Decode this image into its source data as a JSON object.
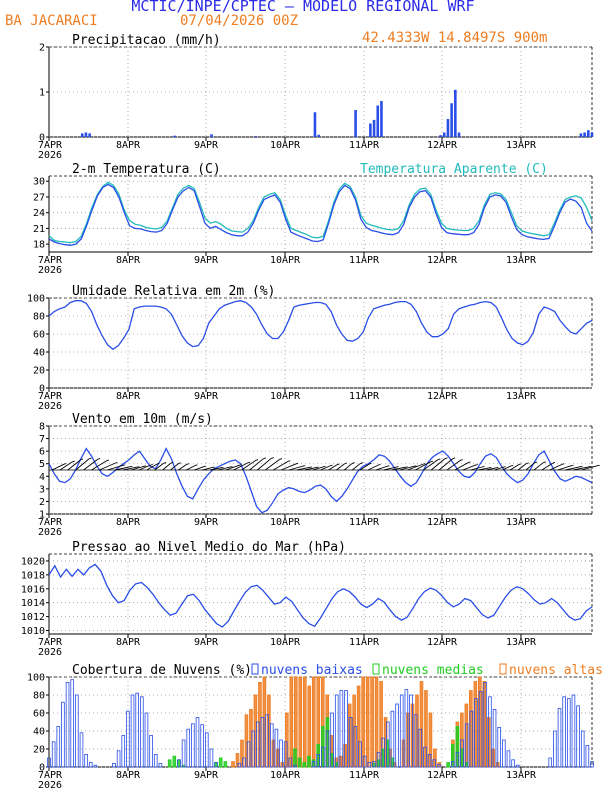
{
  "header": {
    "title": "MCTIC/INPE/CPTEC – MODELO REGIONAL WRF",
    "location": "BA JACARACI",
    "run": "07/04/2026 00Z",
    "coords": "42.4333W 14.8497S 900m"
  },
  "colors": {
    "title": "#2a2ae8",
    "orange": "#ee7d22",
    "blue": "#2a4ee8",
    "cyan": "#22bbbb",
    "green": "#22cc22"
  },
  "time_axis": {
    "labels": [
      "7APR",
      "8APR",
      "9APR",
      "10APR",
      "11APR",
      "12APR",
      "13APR"
    ],
    "year": "2026"
  },
  "chart_data": [
    {
      "type": "bar",
      "title": "Precipitacao (mm/h)",
      "ylim": [
        0,
        2
      ],
      "yticks": [
        "0",
        "1",
        "2"
      ],
      "series": [
        {
          "values": [
            0,
            0,
            0,
            0,
            0,
            0,
            0,
            0,
            0,
            0.08,
            0.1,
            0.08,
            0,
            0,
            0,
            0,
            0,
            0,
            0,
            0,
            0,
            0,
            0,
            0,
            0,
            0,
            0,
            0,
            0,
            0,
            0,
            0,
            0,
            0,
            0.03,
            0,
            0,
            0,
            0,
            0,
            0,
            0,
            0,
            0,
            0.06,
            0,
            0,
            0,
            0,
            0,
            0,
            0,
            0,
            0,
            0,
            0,
            0.02,
            0,
            0,
            0,
            0,
            0,
            0,
            0,
            0,
            0,
            0,
            0,
            0,
            0,
            0,
            0,
            0.55,
            0.05,
            0,
            0,
            0,
            0,
            0,
            0,
            0,
            0,
            0,
            0.6,
            0,
            0,
            0,
            0.3,
            0.38,
            0.7,
            0.8,
            0,
            0,
            0,
            0,
            0,
            0,
            0,
            0,
            0,
            0,
            0,
            0,
            0,
            0,
            0,
            0.04,
            0.1,
            0.4,
            0.75,
            1.05,
            0.1,
            0,
            0,
            0,
            0,
            0,
            0,
            0,
            0,
            0,
            0,
            0,
            0,
            0,
            0,
            0,
            0,
            0,
            0,
            0,
            0,
            0,
            0,
            0,
            0,
            0,
            0,
            0,
            0,
            0,
            0,
            0,
            0,
            0.08,
            0.1,
            0.15,
            0.1
          ]
        }
      ]
    },
    {
      "type": "line",
      "title": "2-m Temperatura (C)",
      "ylim": [
        16.5,
        31
      ],
      "yticks": [
        "18",
        "21",
        "24",
        "27",
        "30"
      ],
      "series": [
        {
          "name": "Temperatura Aparente (C)",
          "color": "#22bbbb",
          "values": [
            19.6,
            18.7,
            18.5,
            18.4,
            18.3,
            18.5,
            19.5,
            22.0,
            25.0,
            27.5,
            29.0,
            29.8,
            29.2,
            27.5,
            24.5,
            22.5,
            21.8,
            21.6,
            21.2,
            21.0,
            20.9,
            21.2,
            22.5,
            25.0,
            27.5,
            28.7,
            29.2,
            28.6,
            26.0,
            23.0,
            22.0,
            22.3,
            21.8,
            21.0,
            20.5,
            20.4,
            20.3,
            21.0,
            22.5,
            25.0,
            27.0,
            27.5,
            27.8,
            26.5,
            23.5,
            21.0,
            20.6,
            20.2,
            19.8,
            19.3,
            19.2,
            19.5,
            22.5,
            26.0,
            28.5,
            29.6,
            29.0,
            27.0,
            23.5,
            22.0,
            21.6,
            21.3,
            21.0,
            20.8,
            20.7,
            21.0,
            22.5,
            25.5,
            27.5,
            28.5,
            28.7,
            27.5,
            24.5,
            22.0,
            21.0,
            20.8,
            20.7,
            20.6,
            20.6,
            21.0,
            22.5,
            25.5,
            27.5,
            27.8,
            27.6,
            26.5,
            24.0,
            21.5,
            20.5,
            20.2,
            20.0,
            19.8,
            19.6,
            19.8,
            22.0,
            24.5,
            26.5,
            27.0,
            27.2,
            26.8,
            25.0,
            22.5
          ]
        },
        {
          "name": "",
          "color": "#2a4ee8",
          "values": [
            19.0,
            18.4,
            18.1,
            17.9,
            17.8,
            18.0,
            19.0,
            21.5,
            24.5,
            27.2,
            28.8,
            29.4,
            28.8,
            27.0,
            24.0,
            21.5,
            21.0,
            20.9,
            20.6,
            20.4,
            20.3,
            20.6,
            22.0,
            24.6,
            27.0,
            28.2,
            28.8,
            28.2,
            25.2,
            22.0,
            21.0,
            21.4,
            20.8,
            20.2,
            19.8,
            19.6,
            19.6,
            20.3,
            22.0,
            24.5,
            26.5,
            27.0,
            27.4,
            26.0,
            22.8,
            20.3,
            19.8,
            19.4,
            19.0,
            18.6,
            18.5,
            18.8,
            22.0,
            25.5,
            28.0,
            29.2,
            28.6,
            26.5,
            22.8,
            21.2,
            20.6,
            20.4,
            20.1,
            19.9,
            19.8,
            20.2,
            21.8,
            25.0,
            27.0,
            28.0,
            28.2,
            27.0,
            23.8,
            21.2,
            20.2,
            20.0,
            19.9,
            19.8,
            19.8,
            20.2,
            21.8,
            25.0,
            27.0,
            27.4,
            27.2,
            26.0,
            23.2,
            20.8,
            19.8,
            19.4,
            19.2,
            19.0,
            18.9,
            19.1,
            21.4,
            24.0,
            26.0,
            26.6,
            26.2,
            25.0,
            22.0,
            20.5
          ]
        }
      ]
    },
    {
      "type": "line",
      "title": "Umidade Relativa em 2m (%)",
      "ylim": [
        0,
        100
      ],
      "yticks": [
        "0",
        "20",
        "40",
        "60",
        "80",
        "100"
      ],
      "series": [
        {
          "name": "",
          "color": "#2a4ee8",
          "values": [
            80,
            85,
            88,
            90,
            95,
            97,
            97,
            94,
            85,
            70,
            58,
            48,
            43,
            47,
            55,
            65,
            88,
            90,
            91,
            91,
            91,
            90,
            88,
            82,
            70,
            58,
            50,
            46,
            47,
            55,
            72,
            80,
            88,
            92,
            94,
            96,
            97,
            95,
            90,
            82,
            70,
            60,
            55,
            55,
            62,
            75,
            90,
            92,
            93,
            94,
            95,
            95,
            93,
            85,
            70,
            60,
            53,
            52,
            55,
            62,
            78,
            88,
            90,
            92,
            93,
            95,
            96,
            96,
            93,
            85,
            72,
            62,
            57,
            57,
            60,
            66,
            82,
            88,
            90,
            92,
            93,
            95,
            96,
            95,
            90,
            78,
            65,
            55,
            50,
            48,
            52,
            62,
            82,
            90,
            88,
            85,
            75,
            68,
            62,
            60,
            66,
            72,
            75
          ]
        }
      ]
    },
    {
      "type": "line",
      "title": "Vento em 10m (m/s)",
      "ylim": [
        1,
        8
      ],
      "yticks": [
        "1",
        "2",
        "3",
        "4",
        "5",
        "6",
        "7",
        "8"
      ],
      "series": [
        {
          "name": "",
          "color": "#2a4ee8",
          "values": [
            5.0,
            4.2,
            3.6,
            3.5,
            3.8,
            4.5,
            5.4,
            6.2,
            5.6,
            4.8,
            4.2,
            4.0,
            4.3,
            4.7,
            5.0,
            5.3,
            5.7,
            6.0,
            5.4,
            4.8,
            4.6,
            5.3,
            6.2,
            5.4,
            4.2,
            3.2,
            2.4,
            2.2,
            3.0,
            3.7,
            4.2,
            4.6,
            4.8,
            5.0,
            5.2,
            5.3,
            5.0,
            4.0,
            2.8,
            1.6,
            1.1,
            1.3,
            1.9,
            2.6,
            2.9,
            3.1,
            3.0,
            2.8,
            2.7,
            2.9,
            3.2,
            3.3,
            3.0,
            2.4,
            2.0,
            2.4,
            3.0,
            3.7,
            4.4,
            4.8,
            5.0,
            5.3,
            5.7,
            5.6,
            5.2,
            4.6,
            4.0,
            3.5,
            3.2,
            3.5,
            4.2,
            5.0,
            5.5,
            5.8,
            6.0,
            5.6,
            5.0,
            4.4,
            4.0,
            3.9,
            4.3,
            5.0,
            5.6,
            5.8,
            5.5,
            4.8,
            4.2,
            3.8,
            3.5,
            3.7,
            4.2,
            5.0,
            5.7,
            6.0,
            5.2,
            4.4,
            3.8,
            3.6,
            3.8,
            4.0,
            3.9,
            3.7,
            3.5
          ]
        }
      ]
    },
    {
      "type": "line",
      "title": "Pressao ao Nivel Medio do Mar (hPa)",
      "ylim": [
        1009.5,
        1021
      ],
      "yticks": [
        "1010",
        "1012",
        "1014",
        "1016",
        "1018",
        "1020"
      ],
      "series": [
        {
          "name": "",
          "color": "#2a4ee8",
          "values": [
            1018.0,
            1019.3,
            1017.7,
            1018.8,
            1017.8,
            1018.8,
            1018.0,
            1019.0,
            1019.5,
            1018.5,
            1016.5,
            1015.0,
            1014.0,
            1014.3,
            1015.8,
            1016.7,
            1016.9,
            1016.2,
            1015.2,
            1014.0,
            1013.0,
            1012.2,
            1012.5,
            1013.8,
            1015.0,
            1015.2,
            1014.3,
            1013.0,
            1012.0,
            1011.0,
            1010.5,
            1011.3,
            1012.8,
            1014.2,
            1015.5,
            1016.3,
            1016.5,
            1015.8,
            1014.8,
            1013.8,
            1014.0,
            1014.8,
            1014.2,
            1013.0,
            1011.8,
            1011.0,
            1010.6,
            1011.8,
            1013.2,
            1014.6,
            1015.6,
            1016.0,
            1015.6,
            1014.8,
            1013.8,
            1013.3,
            1013.8,
            1014.6,
            1014.1,
            1013.0,
            1012.0,
            1011.5,
            1011.9,
            1013.2,
            1014.6,
            1015.6,
            1016.1,
            1015.8,
            1015.0,
            1014.0,
            1013.4,
            1013.8,
            1014.6,
            1014.3,
            1013.3,
            1012.3,
            1011.8,
            1012.2,
            1013.5,
            1014.8,
            1015.8,
            1016.3,
            1016.0,
            1015.3,
            1014.4,
            1013.8,
            1014.0,
            1014.6,
            1014.0,
            1013.0,
            1012.0,
            1011.5,
            1011.7,
            1012.8,
            1013.4
          ]
        }
      ]
    },
    {
      "type": "bar",
      "title": "Cobertura de Nuvens (%)",
      "ylim": [
        0,
        100
      ],
      "yticks": [
        "0",
        "20",
        "40",
        "60",
        "80",
        "100"
      ],
      "series": [
        {
          "name": "nuvens baixas",
          "color": "#2a4ee8",
          "values": [
            10,
            28,
            45,
            72,
            94,
            97,
            80,
            38,
            14,
            5,
            2,
            0,
            0,
            0,
            4,
            18,
            35,
            62,
            80,
            82,
            78,
            60,
            35,
            14,
            4,
            0,
            0,
            0,
            8,
            30,
            42,
            48,
            55,
            47,
            38,
            20,
            5,
            0,
            0,
            0,
            0,
            4,
            10,
            28,
            40,
            50,
            55,
            58,
            48,
            42,
            30,
            28,
            10,
            2,
            0,
            0,
            0,
            6,
            14,
            22,
            40,
            60,
            80,
            85,
            85,
            55,
            45,
            28,
            12,
            5,
            6,
            16,
            32,
            50,
            62,
            70,
            80,
            86,
            80,
            58,
            42,
            22,
            14,
            8,
            3,
            0,
            0,
            6,
            16,
            30,
            48,
            62,
            76,
            84,
            94,
            78,
            64,
            44,
            30,
            18,
            8,
            2,
            0,
            0,
            0,
            0,
            0,
            0,
            10,
            40,
            65,
            78,
            76,
            80,
            68,
            40,
            24,
            6
          ]
        },
        {
          "name": "nuvens medias",
          "color": "#22cc22",
          "values": [
            0,
            0,
            0,
            0,
            0,
            0,
            0,
            0,
            0,
            0,
            0,
            0,
            0,
            0,
            0,
            0,
            0,
            0,
            0,
            0,
            0,
            0,
            0,
            0,
            0,
            0,
            8,
            12,
            8,
            2,
            0,
            0,
            0,
            0,
            0,
            0,
            5,
            10,
            6,
            0,
            0,
            0,
            0,
            0,
            0,
            0,
            0,
            0,
            0,
            0,
            0,
            0,
            0,
            20,
            10,
            5,
            12,
            8,
            25,
            45,
            55,
            15,
            5,
            0,
            0,
            0,
            0,
            0,
            0,
            0,
            4,
            8,
            20,
            30,
            10,
            0,
            0,
            0,
            0,
            0,
            0,
            0,
            0,
            0,
            0,
            0,
            5,
            25,
            45,
            20,
            5,
            0,
            0,
            0,
            0,
            0,
            0,
            0,
            0,
            0,
            0,
            0,
            0,
            0,
            0,
            0,
            0,
            0,
            0,
            0,
            0,
            0,
            0,
            0,
            0,
            0,
            0,
            0
          ]
        },
        {
          "name": "nuvens altas",
          "color": "#ee7d22",
          "values": [
            0,
            0,
            0,
            0,
            0,
            0,
            0,
            0,
            0,
            0,
            0,
            0,
            0,
            0,
            0,
            0,
            0,
            0,
            0,
            0,
            0,
            0,
            0,
            0,
            0,
            0,
            0,
            0,
            0,
            0,
            0,
            0,
            0,
            0,
            0,
            0,
            0,
            0,
            0,
            0,
            0,
            6,
            15,
            30,
            58,
            64,
            80,
            94,
            100,
            80,
            30,
            20,
            5,
            60,
            100,
            100,
            100,
            100,
            90,
            100,
            100,
            100,
            80,
            35,
            10,
            12,
            25,
            70,
            80,
            90,
            100,
            100,
            100,
            100,
            95,
            55,
            20,
            5,
            0,
            30,
            60,
            70,
            80,
            95,
            85,
            60,
            20,
            5,
            0,
            0,
            30,
            50,
            60,
            70,
            85,
            95,
            100,
            95,
            55,
            20,
            5,
            0,
            0,
            0,
            0,
            0,
            0,
            0,
            0,
            0,
            0,
            0,
            0,
            0,
            0,
            0,
            0,
            0,
            0,
            0,
            0,
            0
          ]
        }
      ]
    }
  ]
}
